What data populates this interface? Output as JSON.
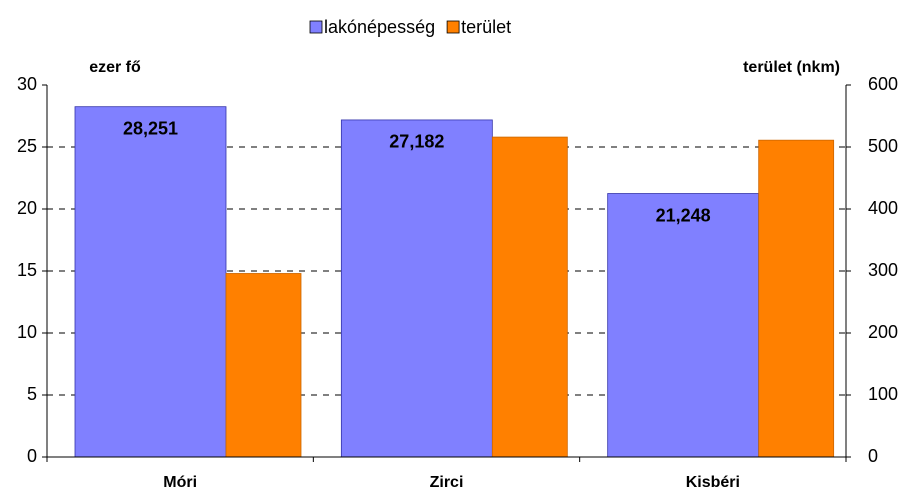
{
  "chart_data": {
    "type": "bar",
    "categories": [
      "Móri",
      "Zirci",
      "Kisbéri"
    ],
    "series": [
      {
        "name": "lakónépesség",
        "color": "#8080ff",
        "values": [
          28.251,
          27.182,
          21.248
        ],
        "value_labels": [
          "28,251",
          "27,182",
          "21,248"
        ]
      },
      {
        "name": "terület",
        "color": "#ff8000",
        "values": [
          296,
          516,
          511
        ],
        "axis": "y2"
      }
    ],
    "ylabel": "ezer fő",
    "y2label": "terület (nkm)",
    "ylim": [
      0,
      30
    ],
    "yticks": [
      0,
      5,
      10,
      15,
      20,
      25,
      30
    ],
    "y2lim": [
      0,
      600
    ],
    "y2ticks": [
      0,
      100,
      200,
      300,
      400,
      500,
      600
    ],
    "grid": true,
    "legend": "top"
  }
}
